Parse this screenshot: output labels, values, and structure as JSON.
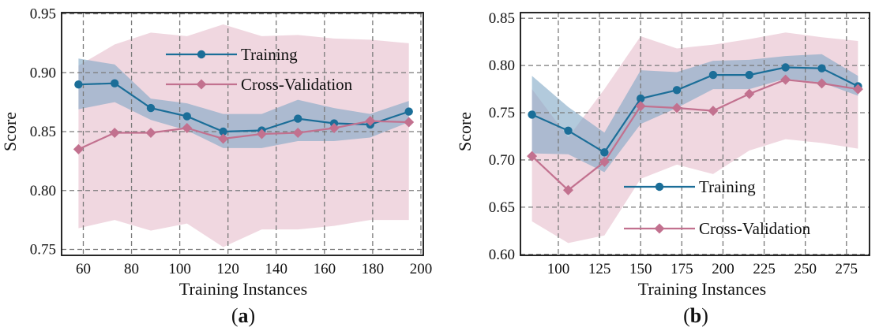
{
  "colors": {
    "training": "#1b6e98",
    "cv": "#c2718f",
    "training_band": "#7fa6c4",
    "cv_band": "#e6bccc",
    "grid": "#7a7a7a"
  },
  "chart_data": [
    {
      "type": "line",
      "panel_label": "a",
      "xlabel": "Training Instances",
      "ylabel": "Score",
      "xlim": [
        51,
        201
      ],
      "ylim": [
        0.745,
        0.951
      ],
      "xticks": [
        60,
        80,
        100,
        120,
        140,
        160,
        180,
        200
      ],
      "yticks": [
        0.75,
        0.8,
        0.85,
        0.9,
        0.95
      ],
      "ytick_labels": [
        "0.75",
        "0.80",
        "0.85",
        "0.90",
        "0.95"
      ],
      "grid": true,
      "legend": "top",
      "series": [
        {
          "name": "Training",
          "marker": "circle",
          "x": [
            58,
            73,
            88,
            103,
            118,
            134,
            149,
            164,
            179,
            195
          ],
          "values": [
            0.89,
            0.891,
            0.87,
            0.863,
            0.85,
            0.851,
            0.861,
            0.857,
            0.856,
            0.867
          ],
          "lower": [
            0.869,
            0.875,
            0.86,
            0.851,
            0.836,
            0.836,
            0.842,
            0.842,
            0.845,
            0.858
          ],
          "upper": [
            0.912,
            0.907,
            0.878,
            0.874,
            0.865,
            0.865,
            0.877,
            0.87,
            0.865,
            0.876
          ]
        },
        {
          "name": "Cross-Validation",
          "marker": "diamond",
          "x": [
            58,
            73,
            88,
            103,
            118,
            134,
            149,
            164,
            179,
            195
          ],
          "values": [
            0.835,
            0.849,
            0.849,
            0.853,
            0.844,
            0.848,
            0.849,
            0.853,
            0.859,
            0.858
          ],
          "lower": [
            0.768,
            0.775,
            0.766,
            0.772,
            0.752,
            0.767,
            0.767,
            0.77,
            0.775,
            0.775
          ],
          "upper": [
            0.906,
            0.924,
            0.934,
            0.931,
            0.941,
            0.931,
            0.932,
            0.929,
            0.928,
            0.925
          ]
        }
      ]
    },
    {
      "type": "line",
      "panel_label": "b",
      "xlabel": "Training Instances",
      "ylabel": "Score",
      "xlim": [
        77,
        289
      ],
      "ylim": [
        0.599,
        0.856
      ],
      "xticks": [
        100,
        125,
        150,
        175,
        200,
        225,
        250,
        275
      ],
      "yticks": [
        0.6,
        0.65,
        0.7,
        0.75,
        0.8,
        0.85
      ],
      "ytick_labels": [
        "0.60",
        "0.65",
        "0.70",
        "0.75",
        "0.80",
        "0.85"
      ],
      "grid": true,
      "legend": "center-right",
      "series": [
        {
          "name": "Training",
          "marker": "circle",
          "x": [
            84,
            106,
            128,
            150,
            172,
            194,
            216,
            238,
            260,
            282
          ],
          "values": [
            0.748,
            0.731,
            0.708,
            0.765,
            0.774,
            0.79,
            0.79,
            0.798,
            0.797,
            0.778
          ],
          "lower": [
            0.707,
            0.706,
            0.687,
            0.738,
            0.755,
            0.775,
            0.775,
            0.786,
            0.782,
            0.768
          ],
          "upper": [
            0.789,
            0.756,
            0.729,
            0.795,
            0.793,
            0.805,
            0.806,
            0.81,
            0.812,
            0.789
          ]
        },
        {
          "name": "Cross-Validation",
          "marker": "diamond",
          "x": [
            84,
            106,
            128,
            150,
            172,
            194,
            216,
            238,
            260,
            282
          ],
          "values": [
            0.704,
            0.668,
            0.698,
            0.757,
            0.755,
            0.752,
            0.77,
            0.785,
            0.781,
            0.775
          ],
          "lower": [
            0.635,
            0.612,
            0.62,
            0.68,
            0.695,
            0.685,
            0.71,
            0.722,
            0.718,
            0.712
          ],
          "upper": [
            0.775,
            0.724,
            0.775,
            0.831,
            0.818,
            0.822,
            0.828,
            0.835,
            0.83,
            0.826
          ]
        }
      ]
    }
  ]
}
